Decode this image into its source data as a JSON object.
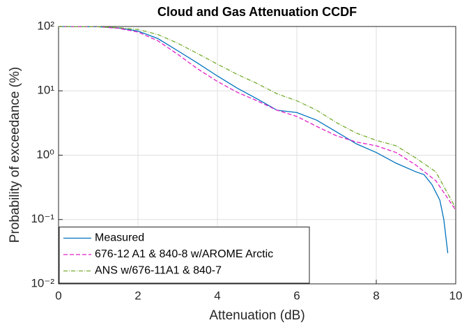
{
  "chart_data": {
    "type": "line",
    "title": "Cloud and Gas Attenuation CCDF",
    "x_label": "Attenuation (dB)",
    "y_label": "Probability of exceedance (%)",
    "xlim": [
      0,
      10
    ],
    "xticks": [
      0,
      2,
      4,
      6,
      8,
      10
    ],
    "ylim": [
      0.01,
      100
    ],
    "log_y": true,
    "yticks": [
      {
        "value": 0.01,
        "label": "10⁻²"
      },
      {
        "value": 0.1,
        "label": "10⁻¹"
      },
      {
        "value": 1,
        "label": "10⁰"
      },
      {
        "value": 10,
        "label": "10¹"
      },
      {
        "value": 100,
        "label": "10²"
      }
    ],
    "grid": true,
    "legend": "lower left",
    "series": [
      {
        "name": "Measured",
        "color": "#0072bd",
        "dash": "solid",
        "x": [
          0,
          1,
          1.5,
          2,
          2.5,
          3,
          3.5,
          4,
          4.5,
          5,
          5.5,
          6,
          6.5,
          7,
          7.5,
          8,
          8.5,
          9,
          9.2,
          9.4,
          9.6,
          9.7,
          9.75,
          9.8
        ],
        "values": [
          100,
          99,
          95,
          85,
          65,
          42,
          27,
          17,
          11,
          7.5,
          5,
          4.6,
          3.5,
          2.3,
          1.5,
          1.1,
          0.75,
          0.55,
          0.5,
          0.35,
          0.2,
          0.1,
          0.055,
          0.03
        ]
      },
      {
        "name": "676-12 A1 & 840-8 w/AROME Arctic",
        "color": "#e020c8",
        "dash": "dashed",
        "x": [
          0,
          1,
          1.5,
          2,
          2.5,
          3,
          3.5,
          4,
          4.5,
          5,
          5.5,
          6,
          6.5,
          7,
          7.5,
          8,
          8.5,
          9,
          9.5,
          10
        ],
        "values": [
          100,
          99,
          94,
          82,
          60,
          37,
          22,
          14,
          9.5,
          7,
          5,
          4,
          2.8,
          2,
          1.6,
          1.4,
          1.1,
          0.7,
          0.4,
          0.14
        ]
      },
      {
        "name": "ANS w/676-11A1  & 840-7",
        "color": "#77ac30",
        "dash": "dashdot",
        "x": [
          0,
          1,
          1.5,
          2,
          2.5,
          3,
          3.5,
          4,
          4.5,
          5,
          5.5,
          6,
          6.5,
          7,
          7.5,
          8,
          8.5,
          9,
          9.5,
          10
        ],
        "values": [
          100,
          99,
          96,
          90,
          75,
          55,
          38,
          26,
          18,
          13,
          9,
          7,
          5,
          3.2,
          2.2,
          1.7,
          1.4,
          0.9,
          0.55,
          0.15
        ]
      }
    ]
  }
}
